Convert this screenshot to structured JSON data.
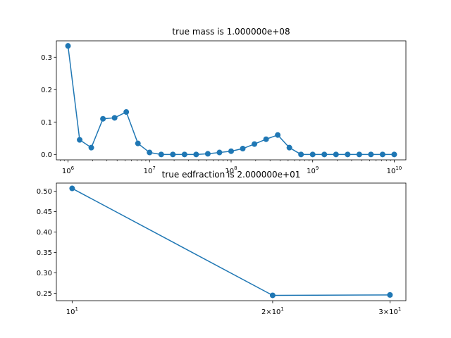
{
  "chart_data": [
    {
      "type": "line",
      "title": "true mass is 1.000000e+08",
      "xscale": "log",
      "xlim": [
        720000,
        13900000000
      ],
      "ylim": [
        -0.0167,
        0.3506
      ],
      "grid": false,
      "x_tick_values": [
        1000000,
        10000000,
        100000000,
        1000000000,
        10000000000
      ],
      "x_tick_labels": [
        "10^6",
        "10^7",
        "10^8",
        "10^9",
        "10^10"
      ],
      "y_tick_values": [
        0.0,
        0.1,
        0.2,
        0.3
      ],
      "y_tick_labels": [
        "0.0",
        "0.1",
        "0.2",
        "0.3"
      ],
      "color": "#1f77b4",
      "marker": "circle",
      "series": [
        {
          "x": [
            1000000,
            1389495,
            1930698,
            2682696,
            3727594,
            5179475,
            7196857,
            10000000,
            13894955,
            19306977,
            26826958,
            37275937,
            51794747,
            71968567,
            100000000,
            138949549,
            193069773,
            268269580,
            372759372,
            517947468,
            719685673,
            1000000000,
            1389495494,
            1930697729,
            2682695795,
            3727593720,
            5179474679,
            7196856730,
            10000000000
          ],
          "y": [
            0.335,
            0.045,
            0.021,
            0.11,
            0.113,
            0.131,
            0.034,
            0.006,
            0.0,
            0.0,
            0.0,
            0.0,
            0.002,
            0.006,
            0.01,
            0.018,
            0.032,
            0.047,
            0.06,
            0.021,
            0.0,
            0.0,
            0.0,
            0.0,
            0.0,
            0.0,
            0.0,
            0.0,
            0.0
          ]
        }
      ]
    },
    {
      "type": "line",
      "title": "true edfraction is 2.000000e+01",
      "xscale": "log",
      "xlim": [
        9.47,
        31.7
      ],
      "ylim": [
        0.232,
        0.52
      ],
      "grid": false,
      "x_tick_values": [
        10,
        20,
        30
      ],
      "x_tick_labels": [
        "10^1",
        "2×10^1",
        "3×10^1"
      ],
      "y_tick_values": [
        0.25,
        0.3,
        0.35,
        0.4,
        0.45,
        0.5
      ],
      "y_tick_labels": [
        "0.25",
        "0.30",
        "0.35",
        "0.40",
        "0.45",
        "0.50"
      ],
      "color": "#1f77b4",
      "marker": "circle",
      "series": [
        {
          "x": [
            10,
            20,
            30
          ],
          "y": [
            0.507,
            0.245,
            0.246
          ]
        }
      ]
    }
  ]
}
